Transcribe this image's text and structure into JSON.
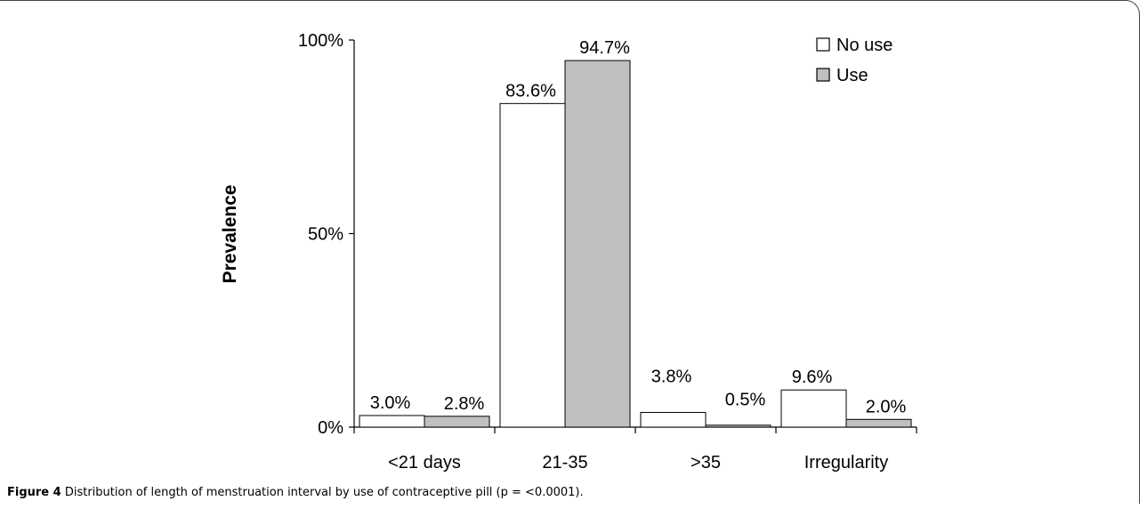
{
  "caption": {
    "label": "Figure 4",
    "text": "Distribution of length of menstruation interval by use of contraceptive pill (p = <0.0001)."
  },
  "chart_data": {
    "type": "bar",
    "title": "",
    "xlabel": "",
    "ylabel": "Prevalence",
    "ylim": [
      0,
      100
    ],
    "yticks": [
      "0%",
      "50%",
      "100%"
    ],
    "categories": [
      "<21 days",
      "21-35",
      ">35",
      "Irregularity"
    ],
    "series": [
      {
        "name": "No use",
        "values": [
          3.0,
          83.6,
          3.8,
          9.6
        ],
        "labels": [
          "3.0%",
          "83.6%",
          "3.8%",
          "9.6%"
        ],
        "color": "#ffffff"
      },
      {
        "name": "Use",
        "values": [
          2.8,
          94.7,
          0.5,
          2.0
        ],
        "labels": [
          "2.8%",
          "94.7%",
          "0.5%",
          "2.0%"
        ],
        "color": "#c0c0c0"
      }
    ],
    "legend": "top-right",
    "grid": false
  }
}
